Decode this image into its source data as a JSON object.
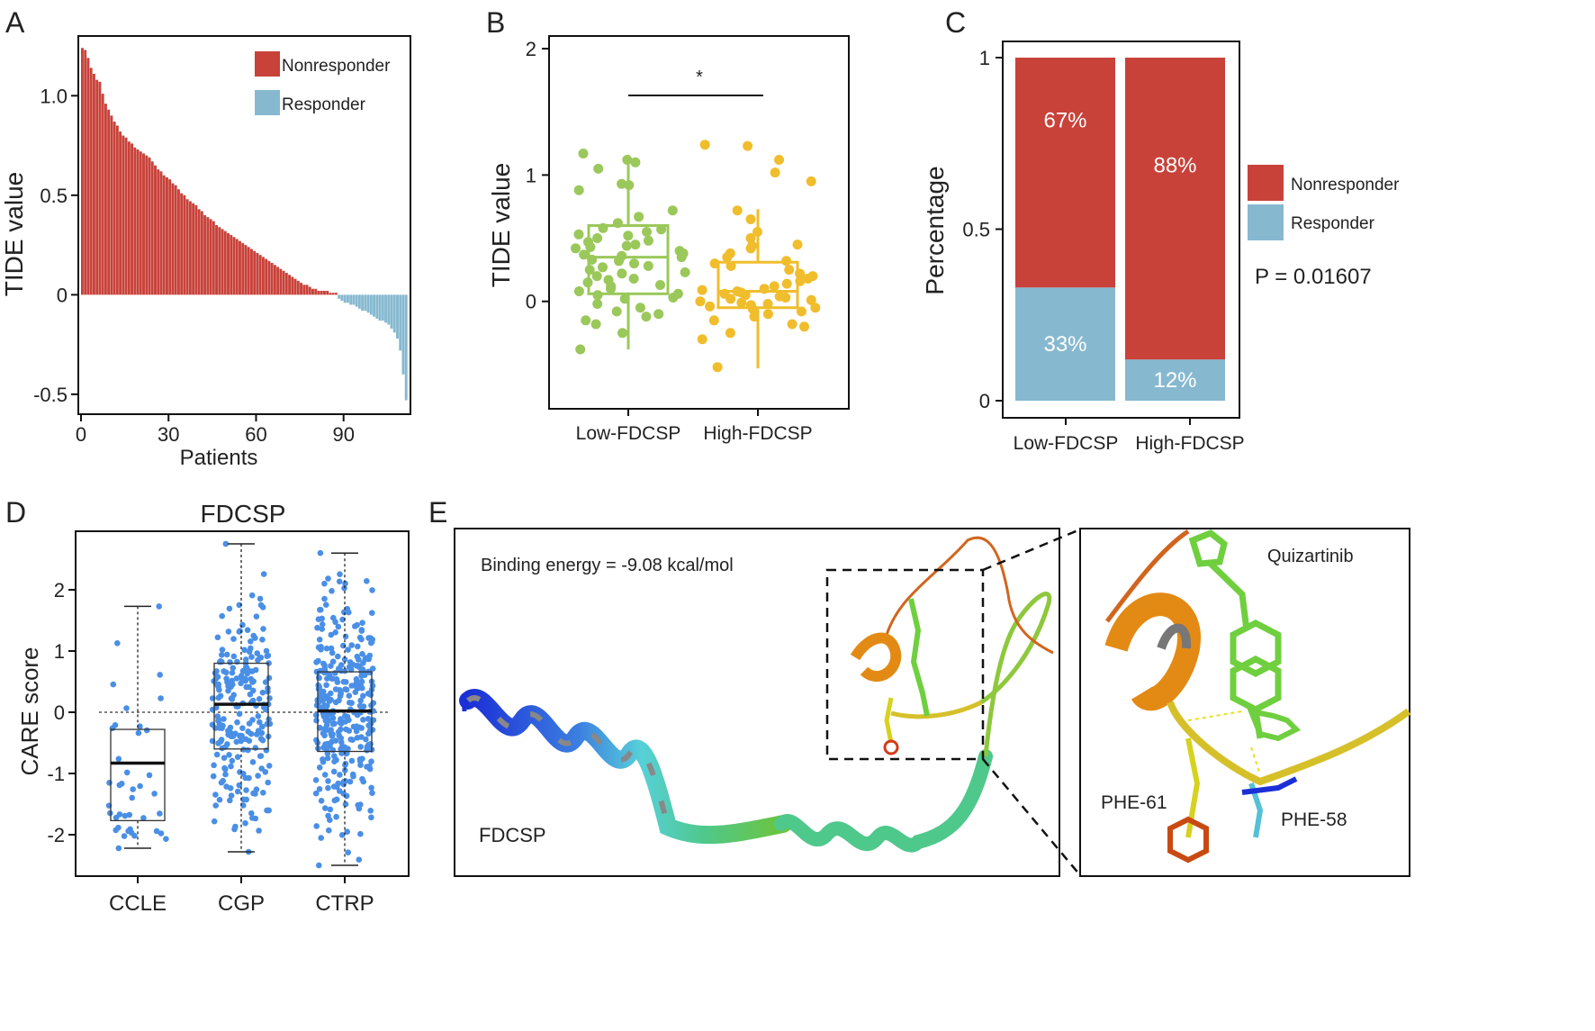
{
  "colors": {
    "nonresponder": "#c8423a",
    "responder": "#86b9d0",
    "low": "#9ac85a",
    "high": "#f0bd2c",
    "dots_d": "#4a8fe6",
    "axis": "#111111"
  },
  "chart_data": [
    {
      "panel": "A",
      "type": "bar",
      "xlabel": "Patients",
      "ylabel": "TIDE value",
      "xticks": [
        "0",
        "30",
        "60",
        "90"
      ],
      "yticks": [
        "-0.5",
        "0",
        "0.5",
        "1.0"
      ],
      "xlim": [
        0,
        112
      ],
      "ylim": [
        -0.6,
        1.3
      ],
      "legend": [
        {
          "label": "Nonresponder",
          "color_key": "nonresponder"
        },
        {
          "label": "Responder",
          "color_key": "responder"
        }
      ],
      "legend_position": "top-right",
      "n_nonresponder": 88,
      "n_responder": 24,
      "values": [
        1.24,
        1.23,
        1.19,
        1.14,
        1.11,
        1.08,
        1.07,
        1.01,
        0.96,
        0.93,
        0.9,
        0.87,
        0.85,
        0.82,
        0.8,
        0.79,
        0.77,
        0.76,
        0.74,
        0.73,
        0.72,
        0.71,
        0.7,
        0.69,
        0.67,
        0.65,
        0.63,
        0.62,
        0.6,
        0.59,
        0.58,
        0.56,
        0.55,
        0.53,
        0.51,
        0.5,
        0.48,
        0.47,
        0.46,
        0.45,
        0.43,
        0.42,
        0.4,
        0.39,
        0.38,
        0.37,
        0.35,
        0.34,
        0.33,
        0.32,
        0.31,
        0.3,
        0.29,
        0.28,
        0.27,
        0.26,
        0.25,
        0.24,
        0.23,
        0.22,
        0.21,
        0.2,
        0.19,
        0.18,
        0.17,
        0.16,
        0.15,
        0.14,
        0.13,
        0.12,
        0.11,
        0.1,
        0.09,
        0.08,
        0.07,
        0.06,
        0.05,
        0.05,
        0.04,
        0.03,
        0.03,
        0.02,
        0.02,
        0.02,
        0.02,
        0.01,
        0.01,
        0.01,
        -0.02,
        -0.03,
        -0.04,
        -0.04,
        -0.05,
        -0.05,
        -0.06,
        -0.07,
        -0.08,
        -0.08,
        -0.09,
        -0.1,
        -0.11,
        -0.12,
        -0.13,
        -0.13,
        -0.14,
        -0.15,
        -0.17,
        -0.19,
        -0.22,
        -0.28,
        -0.4,
        -0.53
      ]
    },
    {
      "panel": "B",
      "type": "box",
      "ylabel": "TIDE value",
      "categories": [
        "Low-FDCSP",
        "High-FDCSP"
      ],
      "yticks": [
        "0",
        "1",
        "2"
      ],
      "ylim": [
        -0.85,
        2.1
      ],
      "significance": "*",
      "boxes": [
        {
          "name": "Low-FDCSP",
          "q1": 0.06,
          "median": 0.35,
          "q3": 0.6,
          "whisker_low": -0.38,
          "whisker_high": 1.16,
          "color_key": "low",
          "points": [
            1.12,
            1.1,
            1.17,
            1.05,
            0.93,
            0.92,
            0.88,
            0.72,
            0.67,
            0.62,
            0.58,
            0.57,
            0.55,
            0.53,
            0.52,
            0.5,
            0.48,
            0.47,
            0.45,
            0.44,
            0.43,
            0.42,
            0.4,
            0.38,
            0.37,
            0.36,
            0.35,
            0.33,
            0.32,
            0.3,
            0.28,
            0.27,
            0.25,
            0.23,
            0.22,
            0.2,
            0.18,
            0.17,
            0.15,
            0.13,
            0.12,
            0.1,
            0.08,
            0.06,
            0.05,
            0.03,
            0.02,
            -0.02,
            -0.05,
            -0.08,
            -0.1,
            -0.12,
            -0.15,
            -0.18,
            -0.25,
            -0.38
          ]
        },
        {
          "name": "High-FDCSP",
          "q1": -0.05,
          "median": 0.08,
          "q3": 0.31,
          "whisker_low": -0.53,
          "whisker_high": 0.73,
          "color_key": "high",
          "points": [
            1.24,
            1.23,
            1.12,
            1.02,
            0.95,
            0.72,
            0.65,
            0.55,
            0.5,
            0.45,
            0.44,
            0.42,
            0.38,
            0.35,
            0.32,
            0.3,
            0.28,
            0.25,
            0.22,
            0.2,
            0.18,
            0.16,
            0.14,
            0.12,
            0.1,
            0.09,
            0.08,
            0.07,
            0.06,
            0.05,
            0.04,
            0.03,
            0.02,
            0.01,
            0.0,
            -0.01,
            -0.02,
            -0.03,
            -0.04,
            -0.05,
            -0.06,
            -0.08,
            -0.1,
            -0.12,
            -0.15,
            -0.18,
            -0.2,
            -0.25,
            -0.3,
            -0.52
          ]
        }
      ]
    },
    {
      "panel": "C",
      "type": "stacked-bar",
      "ylabel": "Percentage",
      "categories": [
        "Low-FDCSP",
        "High-FDCSP"
      ],
      "yticks": [
        "0",
        "0.5",
        "1"
      ],
      "ylim": [
        0,
        1.03
      ],
      "series": [
        {
          "name": "Responder",
          "values": [
            0.33,
            0.12
          ],
          "labels": [
            "33%",
            "12%"
          ],
          "color_key": "responder"
        },
        {
          "name": "Nonresponder",
          "values": [
            0.67,
            0.88
          ],
          "labels": [
            "67%",
            "88%"
          ],
          "color_key": "nonresponder"
        }
      ],
      "legend": [
        {
          "label": "Nonresponder",
          "color_key": "nonresponder"
        },
        {
          "label": "Responder",
          "color_key": "responder"
        }
      ],
      "legend_position": "right",
      "pvalue": "P = 0.01607"
    },
    {
      "panel": "D",
      "type": "box",
      "title": "FDCSP",
      "ylabel": "CARE score",
      "categories": [
        "CCLE",
        "CGP",
        "CTRP"
      ],
      "yticks": [
        "-2",
        "-1",
        "0",
        "1",
        "2"
      ],
      "ylim": [
        -2.6,
        2.9
      ],
      "reference_line": 0,
      "boxes": [
        {
          "name": "CCLE",
          "q1": -1.77,
          "median": -0.83,
          "q3": -0.28,
          "whisker_low": -2.22,
          "whisker_high": 1.73,
          "n_points": 40
        },
        {
          "name": "CGP",
          "q1": -0.6,
          "median": 0.13,
          "q3": 0.8,
          "whisker_low": -2.28,
          "whisker_high": 2.75,
          "n_points": 220
        },
        {
          "name": "CTRP",
          "q1": -0.64,
          "median": 0.02,
          "q3": 0.66,
          "whisker_low": -2.5,
          "whisker_high": 2.6,
          "n_points": 330
        }
      ]
    }
  ],
  "panel_e": {
    "binding_energy": "Binding energy = -9.08 kcal/mol",
    "protein_label": "FDCSP",
    "ligand_label": "Quizartinib",
    "residue1": "PHE-61",
    "residue2": "PHE-58"
  },
  "panel_letters": [
    "A",
    "B",
    "C",
    "D",
    "E"
  ]
}
